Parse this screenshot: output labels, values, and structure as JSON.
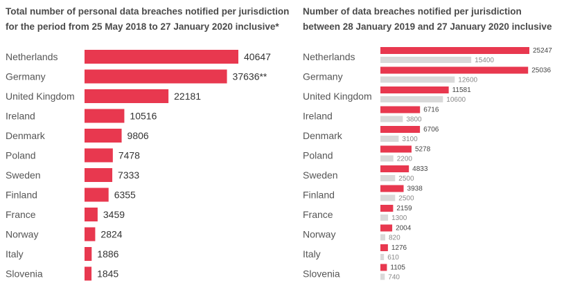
{
  "colors": {
    "primary": "#e8384f",
    "secondary": "#d9d9d9"
  },
  "chart_data": [
    {
      "type": "bar",
      "orientation": "horizontal",
      "title": "Total number of personal data breaches notified per jurisdiction for the period from 25 May 2018 to 27 January 2020 inclusive*",
      "categories": [
        "Netherlands",
        "Germany",
        "United Kingdom",
        "Ireland",
        "Denmark",
        "Poland",
        "Sweden",
        "Finland",
        "France",
        "Norway",
        "Italy",
        "Slovenia"
      ],
      "series": [
        {
          "values": [
            40647,
            37636,
            22181,
            10516,
            9806,
            7478,
            7333,
            6355,
            3459,
            2824,
            1886,
            1845
          ],
          "labels": [
            "40647",
            "37636**",
            "22181",
            "10516",
            "9806",
            "7478",
            "7333",
            "6355",
            "3459",
            "2824",
            "1886",
            "1845"
          ]
        }
      ],
      "xlim": [
        0,
        40647
      ],
      "grid": false,
      "legend": "none"
    },
    {
      "type": "bar",
      "orientation": "horizontal",
      "title": "Number of data breaches notified per jurisdiction between 28 January 2019 and 27 January 2020 inclusive",
      "categories": [
        "Netherlands",
        "Germany",
        "United Kingdom",
        "Ireland",
        "Denmark",
        "Poland",
        "Sweden",
        "Finland",
        "France",
        "Norway",
        "Italy",
        "Slovenia"
      ],
      "series": [
        {
          "values": [
            25247,
            25036,
            11581,
            6716,
            6706,
            5278,
            4833,
            3938,
            2159,
            2004,
            1276,
            1105
          ]
        },
        {
          "values": [
            15400,
            12600,
            10600,
            3800,
            3100,
            2200,
            2500,
            2500,
            1300,
            820,
            610,
            740
          ]
        }
      ],
      "xlim": [
        0,
        25247
      ],
      "grid": false,
      "legend": "none"
    }
  ]
}
